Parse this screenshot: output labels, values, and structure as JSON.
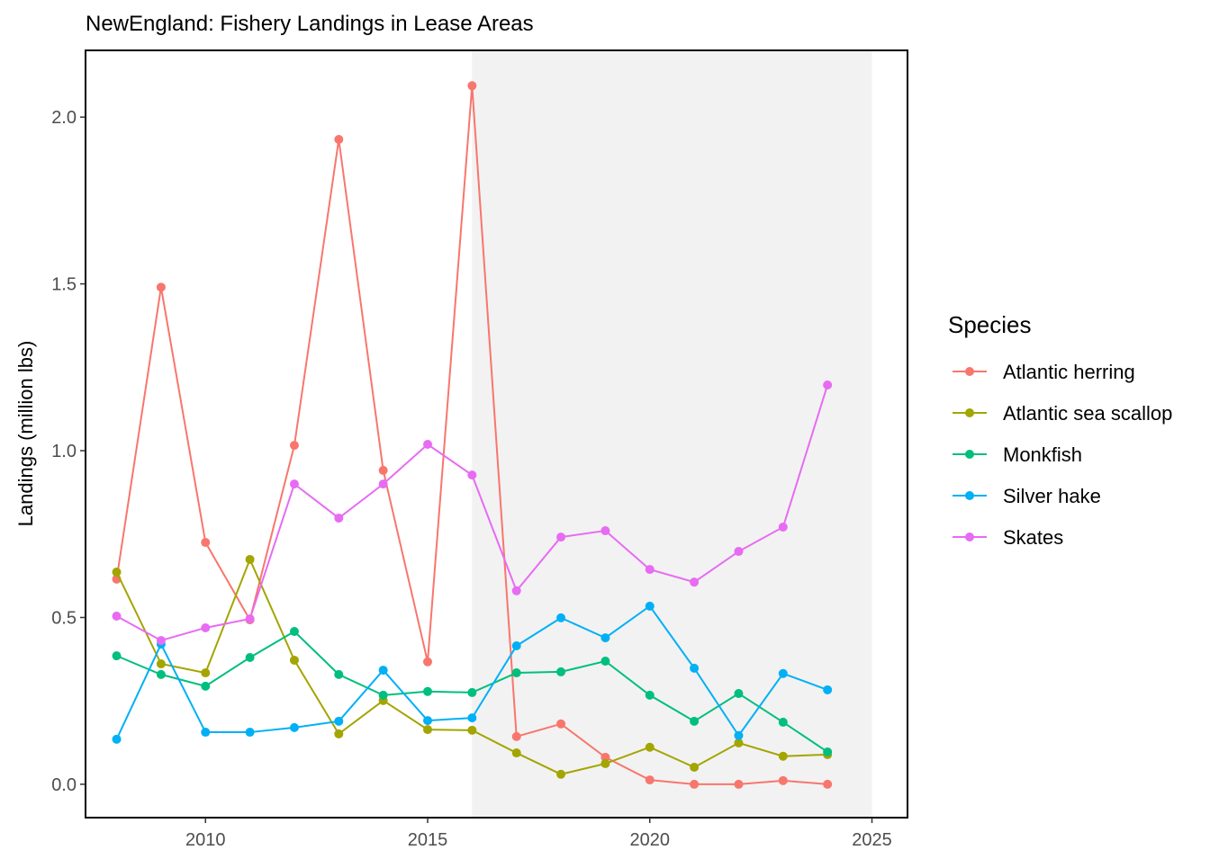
{
  "chart_data": {
    "type": "line",
    "title": "NewEngland: Fishery Landings in Lease Areas",
    "xlabel": "",
    "ylabel": "Landings (million lbs)",
    "xlim": [
      2007.3,
      2025.8
    ],
    "ylim": [
      -0.1,
      2.2
    ],
    "xticks": [
      2010,
      2015,
      2020,
      2025
    ],
    "yticks": [
      0.0,
      0.5,
      1.0,
      1.5,
      2.0
    ],
    "ytick_labels": [
      "0.0",
      "0.5",
      "1.0",
      "1.5",
      "2.0"
    ],
    "shaded_region": [
      2016,
      2025
    ],
    "grid": false,
    "legend": {
      "title": "Species",
      "placement": "right"
    },
    "x": [
      2008,
      2009,
      2010,
      2011,
      2012,
      2013,
      2014,
      2015,
      2016,
      2017,
      2018,
      2019,
      2020,
      2021,
      2022,
      2023,
      2024
    ],
    "series": [
      {
        "name": "Atlantic herring",
        "color": "#F8766D",
        "values": [
          0.615,
          1.49,
          0.725,
          0.493,
          1.016,
          1.933,
          0.941,
          0.367,
          2.094,
          0.143,
          0.181,
          0.081,
          0.013,
          0.0,
          0.0,
          0.011,
          0.0
        ]
      },
      {
        "name": "Atlantic sea scallop",
        "color": "#A3A500",
        "values": [
          0.636,
          0.361,
          0.334,
          0.674,
          0.372,
          0.151,
          0.251,
          0.164,
          0.162,
          0.094,
          0.03,
          0.062,
          0.111,
          0.051,
          0.124,
          0.084,
          0.089
        ]
      },
      {
        "name": "Monkfish",
        "color": "#00BF7D",
        "values": [
          0.385,
          0.329,
          0.294,
          0.38,
          0.458,
          0.329,
          0.267,
          0.278,
          0.275,
          0.334,
          0.337,
          0.369,
          0.267,
          0.189,
          0.272,
          0.186,
          0.097
        ]
      },
      {
        "name": "Silver hake",
        "color": "#00B0F6",
        "values": [
          0.135,
          0.42,
          0.156,
          0.156,
          0.17,
          0.189,
          0.342,
          0.191,
          0.199,
          0.415,
          0.499,
          0.439,
          0.534,
          0.348,
          0.146,
          0.332,
          0.283
        ]
      },
      {
        "name": "Skates",
        "color": "#E76BF3",
        "values": [
          0.504,
          0.431,
          0.469,
          0.496,
          0.9,
          0.798,
          0.9,
          1.019,
          0.927,
          0.58,
          0.741,
          0.76,
          0.644,
          0.606,
          0.698,
          0.771,
          1.197
        ]
      }
    ]
  }
}
